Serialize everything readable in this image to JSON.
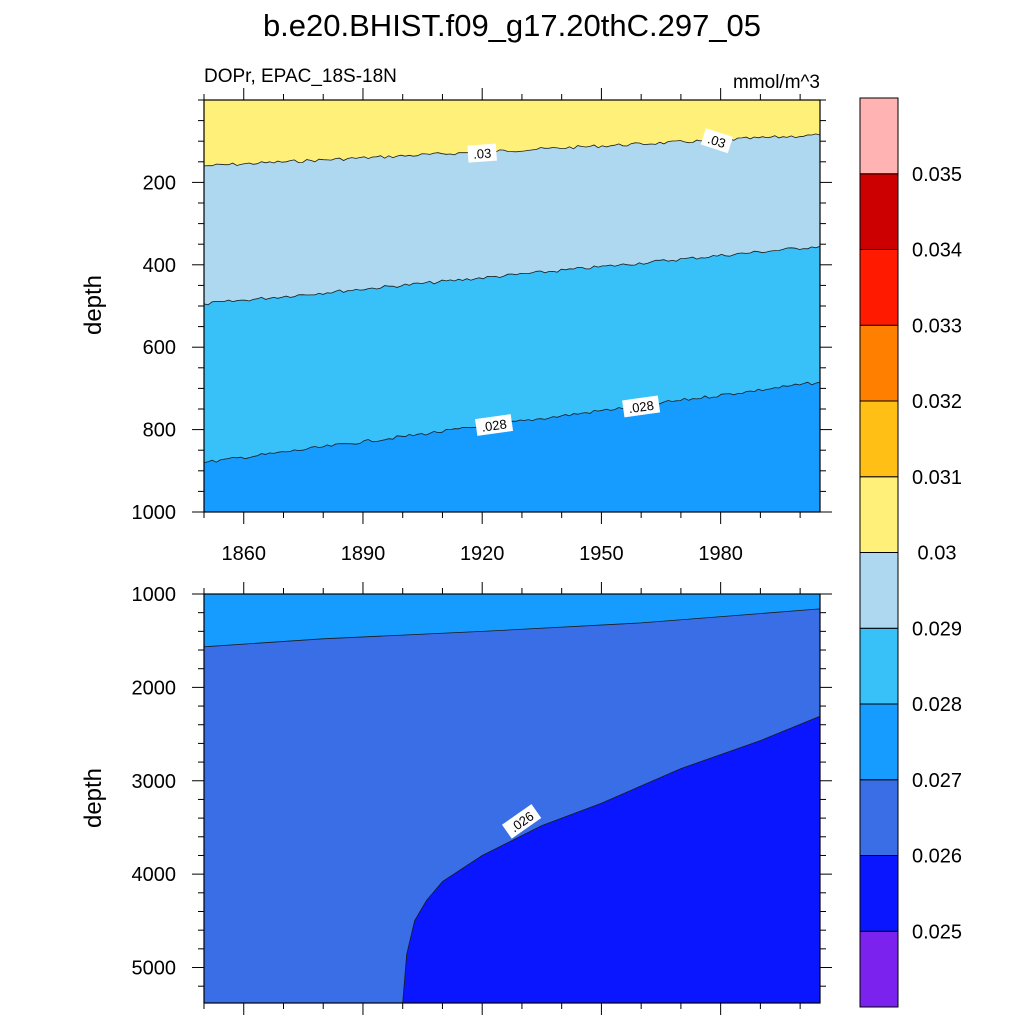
{
  "chart_data": {
    "type": "contour",
    "title": "b.e20.BHIST.f09_g17.20thC.297_05",
    "subtitle_left": "DOPr, EPAC_18S-18N",
    "subtitle_right": "mmol/m^3",
    "x_range": [
      1850,
      2005
    ],
    "x_ticks": [
      1860,
      1890,
      1920,
      1950,
      1980
    ],
    "panels": [
      {
        "name": "upper",
        "ylabel": "depth",
        "ylim": [
          0,
          1000
        ],
        "y_ticks": [
          200,
          400,
          600,
          800,
          1000
        ],
        "fill_bands": [
          {
            "color": "#fff07a",
            "left_depth": 0,
            "right_depth": 0
          },
          {
            "color": "#add8f0",
            "left_depth": 160,
            "right_depth": 85
          },
          {
            "color": "#38c0f8",
            "left_depth": 495,
            "right_depth": 355
          },
          {
            "color": "#169bff",
            "left_depth": 880,
            "right_depth": 685
          }
        ],
        "contours": [
          {
            "level": 0.03,
            "left_depth": 160,
            "right_depth": 85
          },
          {
            "level": 0.029,
            "left_depth": 495,
            "right_depth": 355
          },
          {
            "level": 0.028,
            "left_depth": 880,
            "right_depth": 685
          }
        ],
        "contour_labels": [
          {
            "text": ".03",
            "x": 1920,
            "depth": 130,
            "angle": -4
          },
          {
            "text": ".03",
            "x": 1979,
            "depth": 100,
            "angle": 18
          },
          {
            "text": ".028",
            "x": 1923,
            "depth": 790,
            "angle": -8
          },
          {
            "text": ".028",
            "x": 1960,
            "depth": 745,
            "angle": -8
          }
        ]
      },
      {
        "name": "lower",
        "ylabel": "depth",
        "ylim": [
          1000,
          5380
        ],
        "y_ticks": [
          1000,
          2000,
          3000,
          4000,
          5000
        ],
        "fill_bands": [
          {
            "color": "#169bff"
          },
          {
            "color": "#3a6ee6"
          },
          {
            "color": "#0a16ff"
          }
        ],
        "contours": [
          {
            "level": 0.027,
            "points": [
              [
                1850,
                1565
              ],
              [
                1880,
                1480
              ],
              [
                1920,
                1400
              ],
              [
                1960,
                1310
              ],
              [
                2005,
                1160
              ]
            ]
          },
          {
            "level": 0.026,
            "points": [
              [
                1900,
                5380
              ],
              [
                1901,
                4860
              ],
              [
                1903,
                4500
              ],
              [
                1906,
                4280
              ],
              [
                1910,
                4080
              ],
              [
                1920,
                3800
              ],
              [
                1935,
                3480
              ],
              [
                1950,
                3240
              ],
              [
                1970,
                2870
              ],
              [
                1990,
                2570
              ],
              [
                2005,
                2310
              ]
            ]
          }
        ],
        "contour_labels": [
          {
            "text": ".026",
            "x": 1930,
            "depth": 3440,
            "angle": -35
          }
        ]
      }
    ],
    "colorbar": {
      "levels": [
        "0.025",
        "0.026",
        "0.027",
        "0.028",
        "0.029",
        "0.03",
        "0.031",
        "0.032",
        "0.033",
        "0.034",
        "0.035"
      ],
      "colors": [
        "#7b22ee",
        "#0a16ff",
        "#3a6ee6",
        "#169bff",
        "#38c0f8",
        "#add8f0",
        "#fff07a",
        "#ffbf14",
        "#ff7f00",
        "#ff1a00",
        "#cc0000",
        "#ffb3b3"
      ]
    }
  }
}
